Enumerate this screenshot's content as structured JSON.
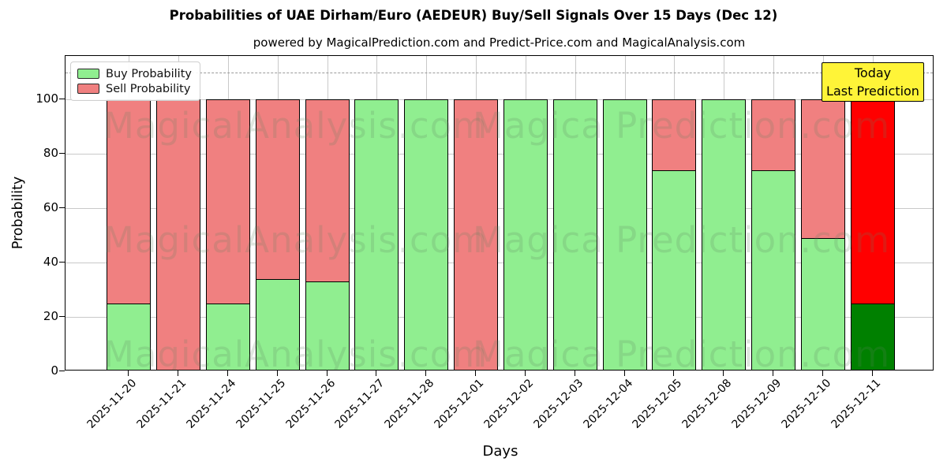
{
  "header": {
    "title": "Probabilities of UAE Dirham/Euro (AEDEUR) Buy/Sell Signals Over 15 Days (Dec 12)",
    "subtitle": "powered by MagicalPrediction.com and Predict-Price.com and MagicalAnalysis.com"
  },
  "legend": {
    "items": [
      {
        "label": "Buy Probability",
        "color": "#90ee90"
      },
      {
        "label": "Sell Probability",
        "color": "#f08080"
      }
    ]
  },
  "annotation": {
    "line1": "Today",
    "line2": "Last Prediction",
    "bg_color": "#fff438"
  },
  "watermarks": [
    "MagicalAnalysis.com",
    "Magica Prediction.com"
  ],
  "colors": {
    "buy": "#90ee90",
    "sell": "#f08080",
    "today_buy": "#008000",
    "today_sell": "#ff0000",
    "grid": "#c9c9c9",
    "dashed_line": "#9a9a9a"
  },
  "chart_data": {
    "type": "bar",
    "stacked": true,
    "title": "Probabilities of UAE Dirham/Euro (AEDEUR) Buy/Sell Signals Over 15 Days (Dec 12)",
    "xlabel": "Days",
    "ylabel": "Probability",
    "ylim": [
      0,
      116
    ],
    "yticks": [
      0,
      20,
      40,
      60,
      80,
      100
    ],
    "dashed_line_y": 110,
    "grid": true,
    "legend_position": "upper-left",
    "categories": [
      "2025-11-20",
      "2025-11-21",
      "2025-11-24",
      "2025-11-25",
      "2025-11-26",
      "2025-11-27",
      "2025-11-28",
      "2025-12-01",
      "2025-12-02",
      "2025-12-03",
      "2025-12-04",
      "2025-12-05",
      "2025-12-08",
      "2025-12-09",
      "2025-12-10",
      "2025-12-11"
    ],
    "series": [
      {
        "name": "Buy Probability",
        "values": [
          25,
          0,
          25,
          34,
          33,
          100,
          100,
          0,
          100,
          100,
          100,
          74,
          100,
          74,
          49,
          25
        ]
      },
      {
        "name": "Sell Probability",
        "values": [
          75,
          100,
          75,
          66,
          67,
          0,
          0,
          100,
          0,
          0,
          0,
          26,
          0,
          26,
          51,
          75
        ]
      }
    ],
    "last_bar_highlight": true
  }
}
